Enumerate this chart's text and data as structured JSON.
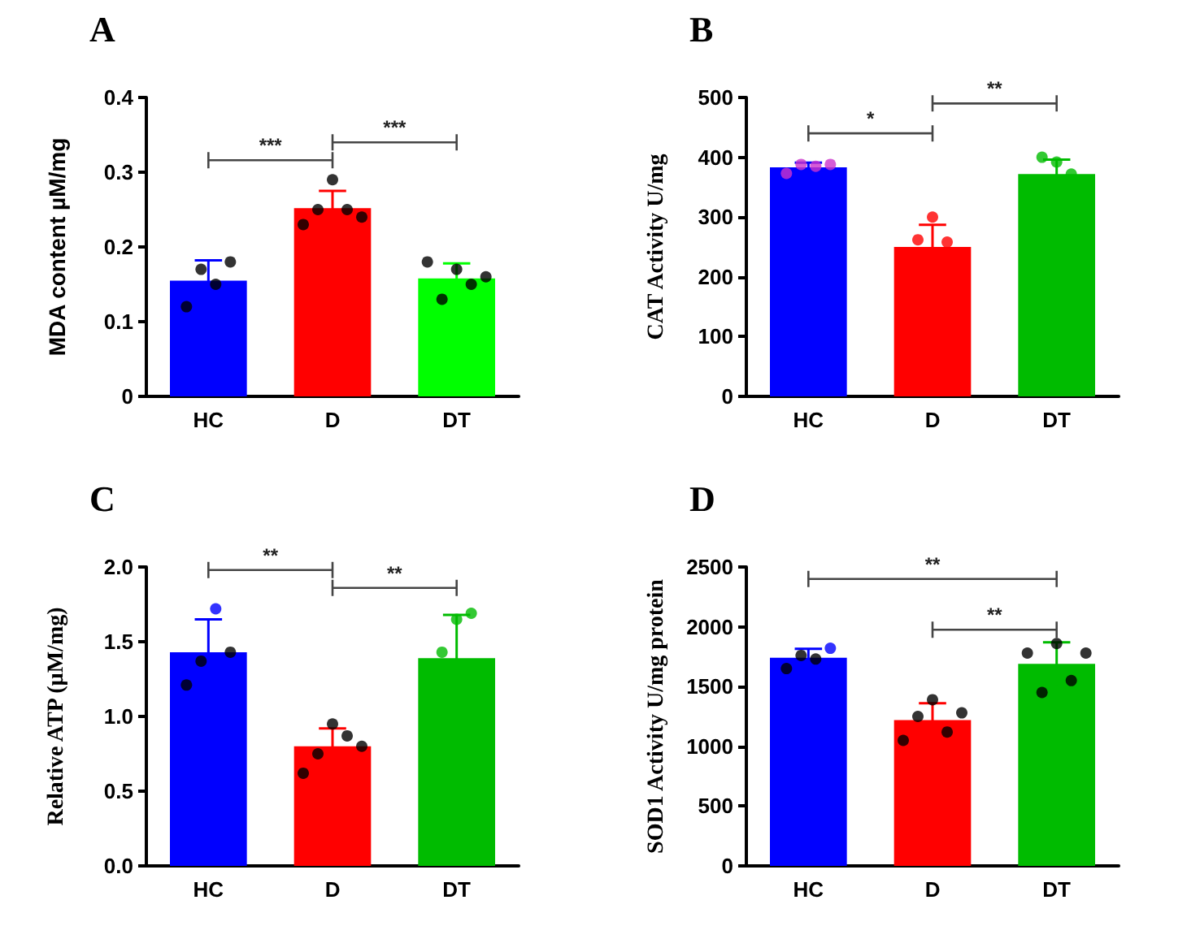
{
  "chart_data": [
    {
      "type": "bar",
      "title": "A",
      "ylabel": "MDA content µM/mg",
      "categories": [
        "HC",
        "D",
        "DT"
      ],
      "ylim": [
        0,
        0.4
      ],
      "yticks": [
        0,
        0.1,
        0.2,
        0.3,
        0.4
      ],
      "grid": false,
      "annotations": [
        "***",
        "***"
      ],
      "series": [
        {
          "values": [
            0.155,
            0.252,
            0.158
          ],
          "colors": [
            "#0000ff",
            "#ff0000",
            "#00ff00"
          ],
          "errors": [
            0.027,
            0.023,
            0.02
          ]
        },
        {
          "type": "scatter",
          "x": [
            "HC",
            "HC",
            "HC",
            "HC",
            "D",
            "D",
            "D",
            "D",
            "D",
            "DT",
            "DT",
            "DT",
            "DT",
            "DT"
          ],
          "values": [
            0.12,
            0.17,
            0.15,
            0.18,
            0.23,
            0.25,
            0.29,
            0.25,
            0.24,
            0.18,
            0.13,
            0.17,
            0.15,
            0.16
          ],
          "colors": [
            "#000000",
            "#000000",
            "#000000",
            "#000000",
            "#000000",
            "#000000",
            "#000000",
            "#000000",
            "#000000",
            "#000000",
            "#000000",
            "#000000",
            "#000000",
            "#000000"
          ]
        }
      ]
    },
    {
      "type": "bar",
      "title": "B",
      "ylabel": "CAT Activity U/mg",
      "categories": [
        "HC",
        "D",
        "DT"
      ],
      "ylim": [
        0,
        500
      ],
      "yticks": [
        0,
        100,
        200,
        300,
        400,
        500
      ],
      "grid": false,
      "annotations": [
        "*",
        "**"
      ],
      "series": [
        {
          "values": [
            383,
            250,
            372
          ],
          "colors": [
            "#0000ff",
            "#ff0000",
            "#00bb00"
          ],
          "errors": [
            8,
            37,
            24
          ]
        },
        {
          "type": "scatter",
          "x": [
            "HC",
            "HC",
            "HC",
            "HC",
            "D",
            "D",
            "D",
            "DT",
            "DT",
            "DT"
          ],
          "values": [
            373,
            388,
            385,
            388,
            262,
            300,
            258,
            400,
            392,
            372
          ],
          "colors": [
            "#cc33cc",
            "#cc33cc",
            "#cc33cc",
            "#cc33cc",
            "#ff0000",
            "#ff0000",
            "#ff0000",
            "#00bb00",
            "#00bb00",
            "#00bb00"
          ]
        }
      ]
    },
    {
      "type": "bar",
      "title": "C",
      "ylabel": "Relative ATP (µM/mg)",
      "categories": [
        "HC",
        "D",
        "DT"
      ],
      "ylim": [
        0,
        2
      ],
      "yticks": [
        {
          "value": 0,
          "label": "0.0"
        },
        0.5,
        {
          "value": 1,
          "label": "1.0"
        },
        1.5,
        {
          "value": 2,
          "label": "2.0"
        }
      ],
      "grid": false,
      "annotations": [
        "**",
        "**"
      ],
      "series": [
        {
          "values": [
            1.43,
            0.8,
            1.39
          ],
          "colors": [
            "#0000ff",
            "#ff0000",
            "#00bb00"
          ],
          "errors": [
            0.22,
            0.12,
            0.29
          ]
        },
        {
          "type": "scatter",
          "x": [
            "HC",
            "HC",
            "HC",
            "HC",
            "D",
            "D",
            "D",
            "D",
            "D",
            "DT",
            "DT",
            "DT"
          ],
          "values": [
            1.21,
            1.37,
            1.72,
            1.43,
            0.62,
            0.75,
            0.95,
            0.87,
            0.8,
            1.43,
            1.65,
            1.69
          ],
          "colors": [
            "#000000",
            "#000000",
            "#0000ff",
            "#000000",
            "#000000",
            "#000000",
            "#000000",
            "#000000",
            "#000000",
            "#00bb00",
            "#00bb00",
            "#00bb00"
          ]
        }
      ]
    },
    {
      "type": "bar",
      "title": "D",
      "ylabel": "SOD1 Activity U/mg protein",
      "categories": [
        "HC",
        "D",
        "DT"
      ],
      "ylim": [
        0,
        2500
      ],
      "yticks": [
        0,
        500,
        1000,
        1500,
        2000,
        2500
      ],
      "grid": false,
      "annotations": [
        "**",
        "**"
      ],
      "series": [
        {
          "values": [
            1740,
            1220,
            1690
          ],
          "colors": [
            "#0000ff",
            "#ff0000",
            "#00bb00"
          ],
          "errors": [
            75,
            140,
            180
          ]
        },
        {
          "type": "scatter",
          "x": [
            "HC",
            "HC",
            "HC",
            "HC",
            "D",
            "D",
            "D",
            "D",
            "D",
            "DT",
            "DT",
            "DT",
            "DT",
            "DT"
          ],
          "values": [
            1650,
            1760,
            1730,
            1820,
            1050,
            1250,
            1390,
            1120,
            1280,
            1780,
            1450,
            1860,
            1550,
            1780
          ],
          "colors": [
            "#000000",
            "#000000",
            "#000000",
            "#0000ff",
            "#000000",
            "#000000",
            "#000000",
            "#000000",
            "#000000",
            "#000000",
            "#000000",
            "#000000",
            "#000000",
            "#000000"
          ]
        }
      ]
    }
  ]
}
